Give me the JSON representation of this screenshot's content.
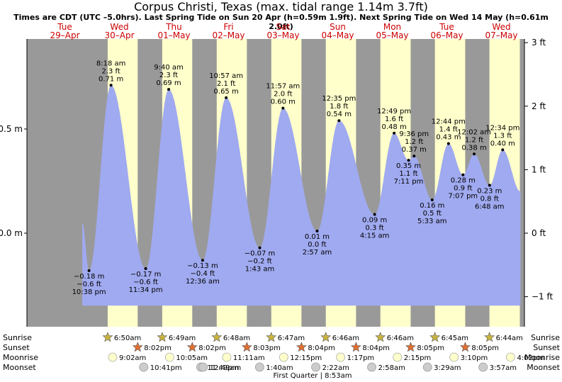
{
  "header": {
    "title": "Corpus Christi, Texas (max. tidal range 1.14m 3.7ft)",
    "subtitle": "Times are CDT (UTC –5.0hrs). Last Spring Tide on Sun 20 Apr (h=0.59m 1.9ft). Next Spring Tide on Wed 14 May (h=0.61m 2.0ft)"
  },
  "colors": {
    "night": "#999999",
    "day": "#ffffcc",
    "water": "#a0aaf0",
    "date_label": "#cc0000"
  },
  "chart_data": {
    "type": "area",
    "title": "Corpus Christi, Texas (max. tidal range 1.14m 3.7ft)",
    "left_axis": {
      "unit": "m",
      "ticks": [
        {
          "v": 0.0,
          "label": "0.0 m"
        },
        {
          "v": 0.5,
          "label": "0.5 m"
        }
      ]
    },
    "right_axis": {
      "unit": "ft",
      "ticks": [
        {
          "v": 3,
          "label": "3 ft"
        },
        {
          "v": 2,
          "label": "2 ft"
        },
        {
          "v": 1,
          "label": "1 ft"
        },
        {
          "v": 0,
          "label": "0 ft"
        },
        {
          "v": -1,
          "label": "−1 ft"
        }
      ]
    },
    "ylim_m": [
      -0.37,
      0.92
    ],
    "xlim_day": [
      0.0,
      8.65
    ],
    "days": [
      {
        "weekday": "Tue",
        "date": "29–Apr"
      },
      {
        "weekday": "Wed",
        "date": "30–Apr"
      },
      {
        "weekday": "Thu",
        "date": "01–May"
      },
      {
        "weekday": "Fri",
        "date": "02–May"
      },
      {
        "weekday": "Sat",
        "date": "03–May"
      },
      {
        "weekday": "Sun",
        "date": "04–May"
      },
      {
        "weekday": "Mon",
        "date": "05–May"
      },
      {
        "weekday": "Tue",
        "date": "06–May"
      },
      {
        "weekday": "Wed",
        "date": "07–May"
      }
    ],
    "tides": [
      {
        "type": "low",
        "day": 0,
        "time": "10:38 pm",
        "m": "−0.18 m",
        "ft": "−0.6 ft",
        "value": -0.18
      },
      {
        "type": "high",
        "day": 1,
        "time": "8:18 am",
        "m": "0.71 m",
        "ft": "2.3 ft",
        "value": 0.71
      },
      {
        "type": "low",
        "day": 1,
        "time": "11:34 pm",
        "m": "−0.17 m",
        "ft": "−0.6 ft",
        "value": -0.17
      },
      {
        "type": "high",
        "day": 2,
        "time": "9:40 am",
        "m": "0.69 m",
        "ft": "2.3 ft",
        "value": 0.69
      },
      {
        "type": "low",
        "day": 3,
        "time": "12:36 am",
        "m": "−0.13 m",
        "ft": "−0.4 ft",
        "value": -0.13
      },
      {
        "type": "high",
        "day": 3,
        "time": "10:57 am",
        "m": "0.65 m",
        "ft": "2.1 ft",
        "value": 0.65
      },
      {
        "type": "low",
        "day": 4,
        "time": "1:43 am",
        "m": "−0.07 m",
        "ft": "−0.2 ft",
        "value": -0.07
      },
      {
        "type": "high",
        "day": 4,
        "time": "11:57 am",
        "m": "0.60 m",
        "ft": "2.0 ft",
        "value": 0.6
      },
      {
        "type": "low",
        "day": 5,
        "time": "2:57 am",
        "m": "0.01 m",
        "ft": "0.0 ft",
        "value": 0.01
      },
      {
        "type": "high",
        "day": 5,
        "time": "12:35 pm",
        "m": "0.54 m",
        "ft": "1.8 ft",
        "value": 0.54
      },
      {
        "type": "low",
        "day": 6,
        "time": "4:15 am",
        "m": "0.09 m",
        "ft": "0.3 ft",
        "value": 0.09
      },
      {
        "type": "high",
        "day": 6,
        "time": "12:49 pm",
        "m": "0.48 m",
        "ft": "1.6 ft",
        "value": 0.48
      },
      {
        "type": "high",
        "day": 6,
        "time": "9:36 pm",
        "m": "0.37 m",
        "ft": "1.2 ft",
        "value": 0.37
      },
      {
        "type": "low",
        "day": 6,
        "time": "7:11 pm",
        "m": "0.35 m",
        "ft": "1.1 ft",
        "value": 0.35
      },
      {
        "type": "low",
        "day": 7,
        "time": "5:33 am",
        "m": "0.16 m",
        "ft": "0.5 ft",
        "value": 0.16
      },
      {
        "type": "high",
        "day": 7,
        "time": "12:44 pm",
        "m": "0.43 m",
        "ft": "1.4 ft",
        "value": 0.43
      },
      {
        "type": "low",
        "day": 7,
        "time": "7:07 pm",
        "m": "0.28 m",
        "ft": "0.9 ft",
        "value": 0.28
      },
      {
        "type": "high",
        "day": 8,
        "time": "12:02 am",
        "m": "0.38 m",
        "ft": "1.2 ft",
        "value": 0.38
      },
      {
        "type": "low",
        "day": 8,
        "time": "6:48 am",
        "m": "0.23 m",
        "ft": "0.8 ft",
        "value": 0.23
      },
      {
        "type": "high",
        "day": 8,
        "time": "12:34 pm",
        "m": "0.40 m",
        "ft": "1.3 ft",
        "value": 0.4
      }
    ],
    "sunrise": [
      {
        "day": 1,
        "time": "6:50am"
      },
      {
        "day": 2,
        "time": "6:49am"
      },
      {
        "day": 3,
        "time": "6:48am"
      },
      {
        "day": 4,
        "time": "6:47am"
      },
      {
        "day": 5,
        "time": "6:46am"
      },
      {
        "day": 6,
        "time": "6:46am"
      },
      {
        "day": 7,
        "time": "6:45am"
      },
      {
        "day": 8,
        "time": "6:44am"
      }
    ],
    "sunset": [
      {
        "day": 1,
        "time": "8:02pm"
      },
      {
        "day": 2,
        "time": "8:02pm"
      },
      {
        "day": 3,
        "time": "8:03pm"
      },
      {
        "day": 4,
        "time": "8:04pm"
      },
      {
        "day": 5,
        "time": "8:04pm"
      },
      {
        "day": 6,
        "time": "8:05pm"
      },
      {
        "day": 7,
        "time": "8:05pm"
      }
    ],
    "moonrise": [
      {
        "day": 1,
        "time": "9:02am"
      },
      {
        "day": 2,
        "time": "10:05am"
      },
      {
        "day": 3,
        "time": "11:11am"
      },
      {
        "day": 4,
        "time": "12:15pm"
      },
      {
        "day": 5,
        "time": "1:17pm"
      },
      {
        "day": 6,
        "time": "2:15pm"
      },
      {
        "day": 7,
        "time": "3:10pm"
      },
      {
        "day": 8,
        "time": "4:02pm"
      }
    ],
    "moonset": [
      {
        "day": 1,
        "time": "10:41pm"
      },
      {
        "day": 2,
        "time": "11:49pm"
      },
      {
        "day": 3,
        "time": "12:49am"
      },
      {
        "day": 4,
        "time": "1:40am"
      },
      {
        "day": 5,
        "time": "2:22am"
      },
      {
        "day": 6,
        "time": "2:58am"
      },
      {
        "day": 7,
        "time": "3:29am"
      },
      {
        "day": 8,
        "time": "3:57am"
      }
    ],
    "moon_phase": "First Quarter | 8:53am"
  },
  "row_labels": {
    "sunrise": "Sunrise",
    "sunset": "Sunset",
    "moonrise": "Moonrise",
    "moonset": "Moonset"
  }
}
